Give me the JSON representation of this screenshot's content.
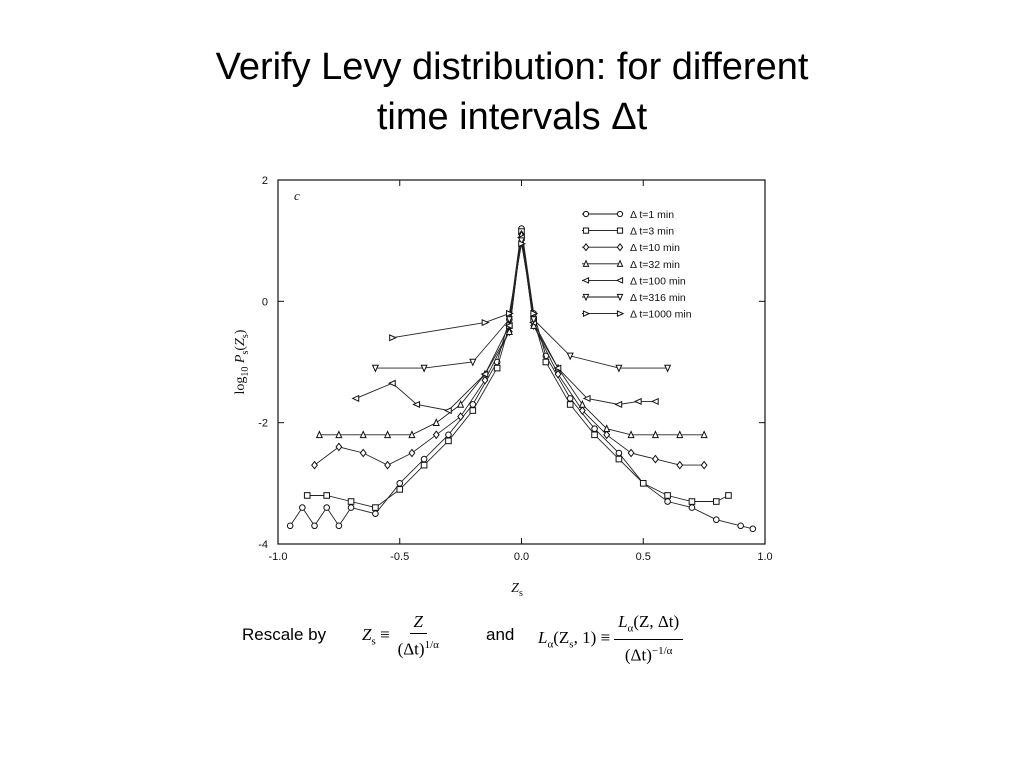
{
  "title": {
    "line1": "Verify Levy distribution: for different",
    "line2": "time intervals Δt"
  },
  "chart_data": {
    "type": "scatter",
    "panel_label": "c",
    "xlabel": "Z",
    "xlabel_sub": "s",
    "ylabel": "log10 Ps(Zs)",
    "xlim": [
      -1.0,
      1.0
    ],
    "ylim": [
      -4,
      2
    ],
    "x_ticks": [
      "-1.0",
      "-0.5",
      "0.0",
      "0.5",
      "1.0"
    ],
    "y_ticks": [
      "-4",
      "-2",
      "0",
      "2"
    ],
    "legend_position": "top-right",
    "series": [
      {
        "name": "Δ t=1 min",
        "marker": "circle",
        "x": [
          -0.95,
          -0.9,
          -0.85,
          -0.8,
          -0.75,
          -0.7,
          -0.6,
          -0.5,
          -0.4,
          -0.3,
          -0.2,
          -0.1,
          -0.05,
          0.0,
          0.05,
          0.1,
          0.2,
          0.3,
          0.4,
          0.5,
          0.6,
          0.7,
          0.8,
          0.9,
          0.95
        ],
        "y": [
          -3.7,
          -3.4,
          -3.7,
          -3.4,
          -3.7,
          -3.4,
          -3.5,
          -3.0,
          -2.6,
          -2.2,
          -1.7,
          -1.0,
          -0.3,
          1.2,
          -0.2,
          -0.9,
          -1.6,
          -2.1,
          -2.5,
          -3.0,
          -3.3,
          -3.4,
          -3.6,
          -3.7,
          -3.75
        ]
      },
      {
        "name": "Δ t=3 min",
        "marker": "square",
        "x": [
          -0.88,
          -0.8,
          -0.7,
          -0.6,
          -0.5,
          -0.4,
          -0.3,
          -0.2,
          -0.1,
          -0.05,
          0.0,
          0.05,
          0.1,
          0.2,
          0.3,
          0.4,
          0.5,
          0.6,
          0.7,
          0.8,
          0.85
        ],
        "y": [
          -3.2,
          -3.2,
          -3.3,
          -3.4,
          -3.1,
          -2.7,
          -2.3,
          -1.8,
          -1.1,
          -0.4,
          1.15,
          -0.3,
          -1.0,
          -1.7,
          -2.2,
          -2.6,
          -3.0,
          -3.2,
          -3.3,
          -3.3,
          -3.2
        ]
      },
      {
        "name": "Δ t=10 min",
        "marker": "diamond",
        "x": [
          -0.85,
          -0.75,
          -0.65,
          -0.55,
          -0.45,
          -0.35,
          -0.25,
          -0.15,
          -0.05,
          0.0,
          0.05,
          0.15,
          0.25,
          0.35,
          0.45,
          0.55,
          0.65,
          0.75
        ],
        "y": [
          -2.7,
          -2.4,
          -2.5,
          -2.7,
          -2.5,
          -2.2,
          -1.9,
          -1.3,
          -0.5,
          1.1,
          -0.4,
          -1.2,
          -1.8,
          -2.2,
          -2.5,
          -2.6,
          -2.7,
          -2.7
        ]
      },
      {
        "name": "Δ t=32 min",
        "marker": "triangle-up",
        "x": [
          -0.83,
          -0.75,
          -0.65,
          -0.55,
          -0.45,
          -0.35,
          -0.25,
          -0.15,
          -0.05,
          0.0,
          0.05,
          0.15,
          0.25,
          0.35,
          0.45,
          0.55,
          0.65,
          0.75
        ],
        "y": [
          -2.2,
          -2.2,
          -2.2,
          -2.2,
          -2.2,
          -2.0,
          -1.7,
          -1.2,
          -0.5,
          1.1,
          -0.4,
          -1.1,
          -1.7,
          -2.1,
          -2.2,
          -2.2,
          -2.2,
          -2.2
        ]
      },
      {
        "name": "Δ t=100 min",
        "marker": "triangle-left",
        "x": [
          -0.68,
          -0.53,
          -0.43,
          -0.3,
          -0.15,
          -0.05,
          0.0,
          0.05,
          0.15,
          0.27,
          0.4,
          0.48,
          0.55
        ],
        "y": [
          -1.6,
          -1.35,
          -1.7,
          -1.8,
          -1.2,
          -0.4,
          1.05,
          -0.35,
          -1.1,
          -1.6,
          -1.7,
          -1.65,
          -1.65
        ]
      },
      {
        "name": "Δ t=316 min",
        "marker": "triangle-down",
        "x": [
          -0.6,
          -0.4,
          -0.2,
          -0.05,
          0.0,
          0.05,
          0.2,
          0.4,
          0.6
        ],
        "y": [
          -1.1,
          -1.1,
          -1.0,
          -0.3,
          1.0,
          -0.3,
          -0.9,
          -1.1,
          -1.1
        ]
      },
      {
        "name": "Δ t=1000 min",
        "marker": "triangle-right",
        "x": [
          -0.53,
          -0.15,
          -0.05,
          0.0,
          0.05
        ],
        "y": [
          -0.6,
          -0.35,
          -0.2,
          0.95,
          -0.2
        ]
      }
    ]
  },
  "rescale": {
    "label": "Rescale by",
    "formula1_lhs": "Z",
    "formula1_lhs_sub": "s",
    "formula1_num": "Z",
    "formula1_den": "(Δt)",
    "formula1_den_exp": "1/α",
    "connector": "and",
    "formula2_lhs_fn": "L",
    "formula2_lhs_sub": "α",
    "formula2_lhs_args": "(Z",
    "formula2_lhs_args_sub": "s",
    "formula2_lhs_args_tail": ", 1)",
    "formula2_num": "L",
    "formula2_num_sub": "α",
    "formula2_num_args": "(Z, Δt)",
    "formula2_den": "(Δt)",
    "formula2_den_exp": "−1/α"
  }
}
